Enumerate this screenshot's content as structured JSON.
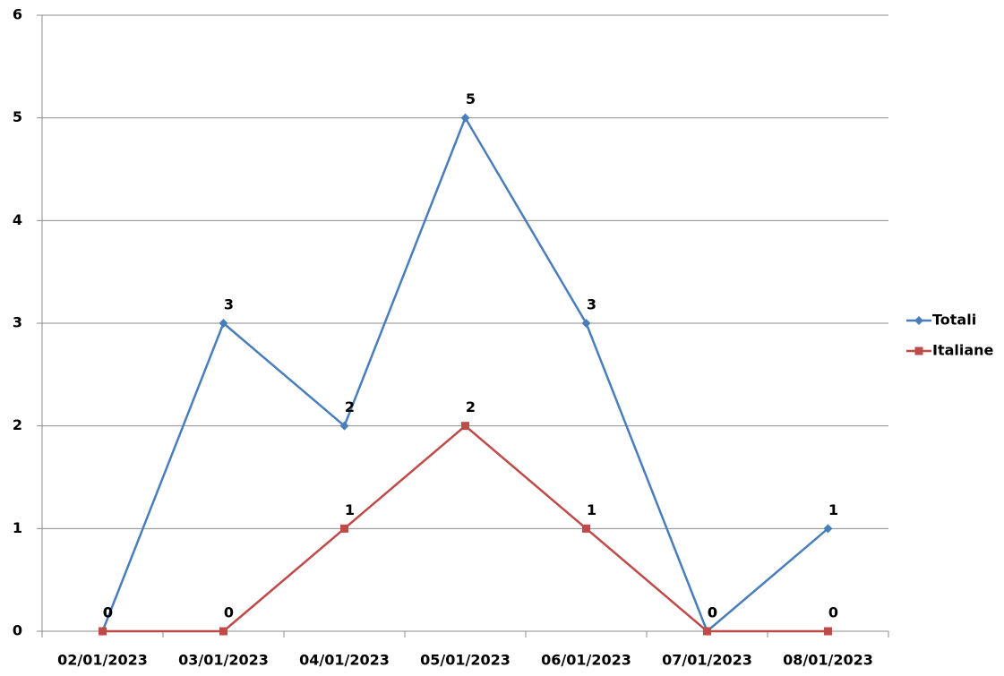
{
  "chart_data": {
    "type": "line",
    "categories": [
      "02/01/2023",
      "03/01/2023",
      "04/01/2023",
      "05/01/2023",
      "06/01/2023",
      "07/01/2023",
      "08/01/2023"
    ],
    "series": [
      {
        "name": "Totali",
        "color": "#4a7ebb",
        "marker": "diamond",
        "values": [
          0,
          3,
          2,
          5,
          3,
          0,
          1
        ]
      },
      {
        "name": "Italiane",
        "color": "#be4b48",
        "marker": "square",
        "values": [
          0,
          0,
          1,
          2,
          1,
          0,
          0
        ]
      }
    ],
    "ylim": [
      0,
      6
    ],
    "yticks": [
      0,
      1,
      2,
      3,
      4,
      5,
      6
    ],
    "grid": true,
    "legend": "right",
    "data_labels": true
  }
}
